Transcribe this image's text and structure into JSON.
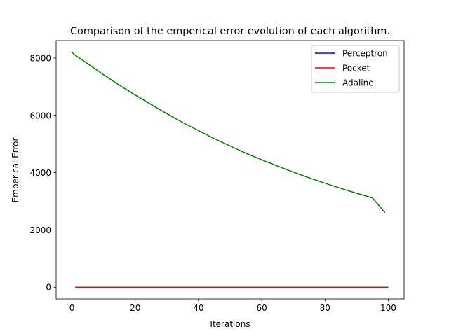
{
  "chart_data": {
    "type": "line",
    "title": "Comparison of the emperical error evolution of each algorithm.",
    "xlabel": "Iterations",
    "ylabel": "Emperical Error",
    "xlim": [
      -5,
      105
    ],
    "ylim": [
      -410,
      8610
    ],
    "xticks": [
      0,
      20,
      40,
      60,
      80,
      100
    ],
    "yticks": [
      0,
      2000,
      4000,
      6000,
      8000
    ],
    "xtick_labels": [
      "0",
      "20",
      "40",
      "60",
      "80",
      "100"
    ],
    "ytick_labels": [
      "0",
      "2000",
      "4000",
      "6000",
      "8000"
    ],
    "grid": false,
    "legend_position": "top-right",
    "series": [
      {
        "name": "Perceptron",
        "color": "#0000ff",
        "x": [
          1,
          2,
          4,
          6,
          8,
          10
        ],
        "y": [
          0,
          0,
          0,
          0,
          0,
          0
        ]
      },
      {
        "name": "Pocket",
        "color": "#ff0000",
        "x": [
          1,
          10,
          20,
          30,
          40,
          50,
          60,
          70,
          80,
          90,
          100
        ],
        "y": [
          0,
          0,
          0,
          0,
          0,
          0,
          0,
          0,
          0,
          0,
          0
        ]
      },
      {
        "name": "Adaline",
        "color": "#008000",
        "x": [
          0,
          1,
          2,
          5,
          10,
          15,
          20,
          25,
          30,
          35,
          40,
          45,
          50,
          55,
          60,
          65,
          70,
          75,
          80,
          85,
          90,
          95,
          99
        ],
        "y": [
          8200,
          8100,
          8030,
          7800,
          7420,
          7050,
          6710,
          6380,
          6060,
          5750,
          5470,
          5190,
          4930,
          4680,
          4450,
          4230,
          4020,
          3820,
          3630,
          3450,
          3280,
          3120,
          2600
        ]
      }
    ]
  }
}
